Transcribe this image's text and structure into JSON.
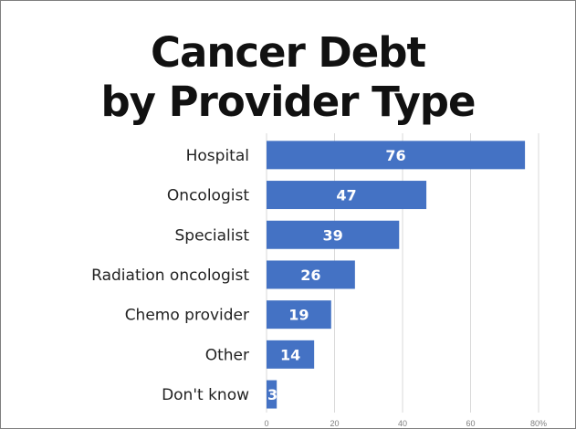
{
  "chart_data": {
    "type": "bar",
    "orientation": "horizontal",
    "title_line1": "Cancer Debt",
    "title_line2": "by Provider Type",
    "categories": [
      "Hospital",
      "Oncologist",
      "Specialist",
      "Radiation oncologist",
      "Chemo provider",
      "Other",
      "Don't know"
    ],
    "values": [
      76,
      47,
      39,
      26,
      19,
      14,
      3
    ],
    "data_labels": [
      "76",
      "47",
      "39",
      "26",
      "19",
      "14",
      "3"
    ],
    "x_ticks": [
      "0",
      "20",
      "40",
      "60",
      "80%"
    ],
    "x_tick_values": [
      0,
      20,
      40,
      60,
      80
    ],
    "xlim": [
      0,
      80
    ],
    "grid": true,
    "legend": "none",
    "bar_color": "#4472c4",
    "grid_color": "#d9d9d9"
  }
}
